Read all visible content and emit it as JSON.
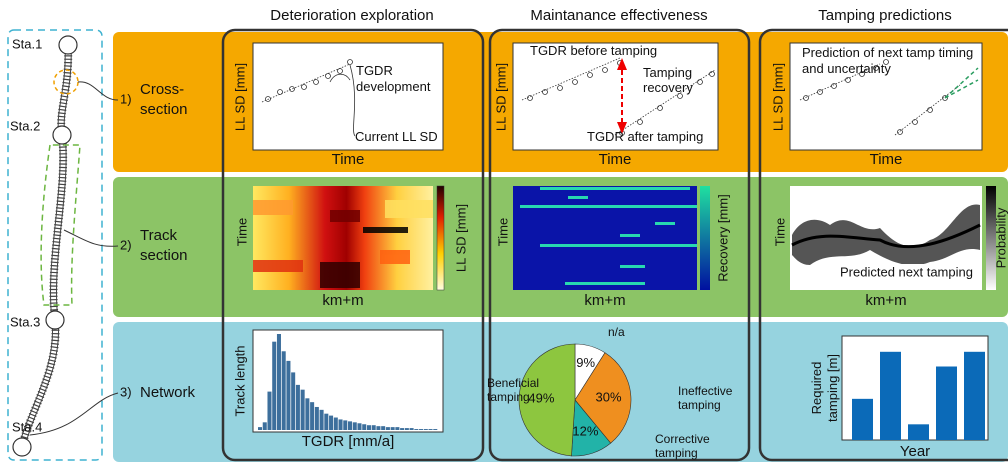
{
  "columns": [
    "Deterioration exploration",
    "Maintanance effectiveness",
    "Tamping predictions"
  ],
  "rows": [
    {
      "number": "1)",
      "label": [
        "Cross-",
        "section"
      ]
    },
    {
      "number": "2)",
      "label": [
        "Track",
        "section"
      ]
    },
    {
      "number": "3)",
      "label": [
        "Network"
      ]
    }
  ],
  "stations": [
    "Sta.1",
    "Sta.2",
    "Sta.3",
    "Sta.4"
  ],
  "cross_section": {
    "deterioration": {
      "y_label": "LL SD [mm]",
      "x_label": "Time",
      "annotations": [
        [
          "TGDR",
          "development"
        ],
        [
          "Current LL SD"
        ]
      ]
    },
    "maintenance": {
      "y_label": "LL SD [mm]",
      "x_label": "Time",
      "annotations": [
        [
          "TGDR before tamping"
        ],
        [
          "Tamping",
          "recovery"
        ],
        [
          "TGDR after tamping"
        ]
      ]
    },
    "prediction": {
      "y_label": "LL SD [mm]",
      "x_label": "Time",
      "annotations": [
        [
          "Prediction of next tamp timing",
          "and uncertainty"
        ]
      ]
    }
  },
  "track_section": {
    "deterioration": {
      "y_label": "Time",
      "x_label": "km+m",
      "colorbar_label": "LL SD [mm]"
    },
    "maintenance": {
      "y_label": "Time",
      "x_label": "km+m",
      "colorbar_label": "Recovery [mm]"
    },
    "prediction": {
      "y_label": "Time",
      "x_label": "km+m",
      "colorbar_label": "Probability",
      "annotation": "Predicted next tamping"
    }
  },
  "network": {
    "histogram": {
      "type": "bar",
      "y_label": "Track length",
      "x_label": "TGDR [mm/a]",
      "color": "#3d6f9c",
      "ylim": [
        0,
        100
      ],
      "values": [
        3,
        8,
        40,
        92,
        100,
        82,
        72,
        60,
        47,
        42,
        33,
        29,
        24,
        21,
        17,
        15,
        13,
        11,
        10,
        9,
        8,
        7,
        6,
        5,
        5,
        4,
        4,
        3,
        3,
        3,
        2,
        2,
        2,
        1,
        1,
        1,
        1,
        1
      ]
    },
    "pie": {
      "type": "pie",
      "categories": [
        [
          "n/a"
        ],
        [
          "Ineffective",
          "tamping"
        ],
        [
          "Corrective",
          "tamping"
        ],
        [
          "Beneficial",
          "tamping"
        ]
      ],
      "values": [
        9,
        30,
        12,
        49
      ],
      "value_labels": [
        "9%",
        "30%",
        "12%",
        "49%"
      ],
      "colors": [
        "#ffffff",
        "#ef8f1f",
        "#22b3a8",
        "#8dc63f"
      ]
    },
    "bars": {
      "type": "bar",
      "y_label": [
        "Required",
        "tamping [m]"
      ],
      "x_label": "Year",
      "color": "#0b6ab8",
      "ylim": [
        0,
        1
      ],
      "values": [
        0.42,
        0.9,
        0.16,
        0.75,
        0.9
      ]
    }
  }
}
